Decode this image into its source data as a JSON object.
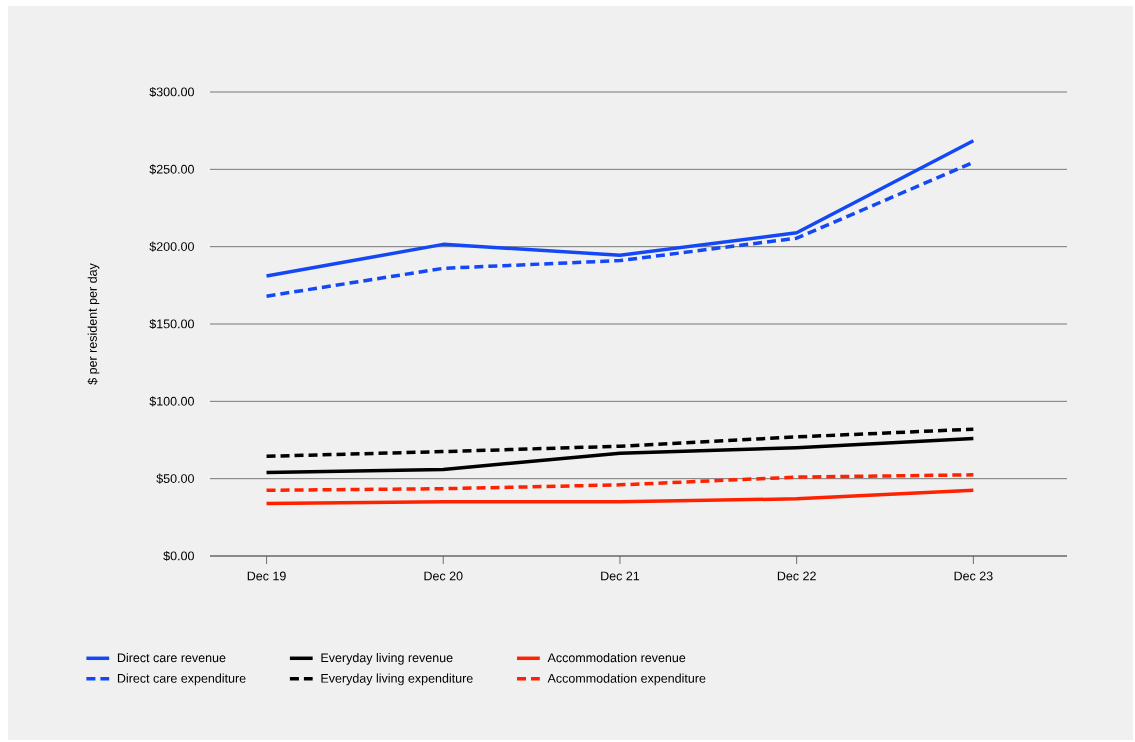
{
  "chart_data": {
    "type": "line",
    "ylabel": "$ per resident per day",
    "categories": [
      "Dec 19",
      "Dec 20",
      "Dec 21",
      "Dec 22",
      "Dec 23"
    ],
    "series": [
      {
        "name": "Direct care revenue",
        "color": "#1448f5",
        "line_style": "solid",
        "values": [
          181,
          201.5,
          194.5,
          209,
          268.5
        ]
      },
      {
        "name": "Direct care expenditure",
        "color": "#1448f5",
        "line_style": "dashed",
        "values": [
          168,
          186,
          191,
          205.5,
          254.5
        ]
      },
      {
        "name": "Everyday living revenue",
        "color": "#000000",
        "line_style": "solid",
        "values": [
          54,
          56,
          66.5,
          70,
          76
        ]
      },
      {
        "name": "Everyday living expenditure",
        "color": "#000000",
        "line_style": "dashed",
        "values": [
          64.5,
          67.5,
          71,
          77,
          82
        ]
      },
      {
        "name": "Accommodation revenue",
        "color": "#ff2200",
        "line_style": "solid",
        "values": [
          34,
          35,
          35,
          37,
          42.5
        ]
      },
      {
        "name": "Accommodation expenditure",
        "color": "#ff2200",
        "line_style": "dashed",
        "values": [
          42.5,
          43.5,
          46,
          51,
          52.5
        ]
      }
    ],
    "ylim": [
      0,
      300
    ],
    "yticks": [
      {
        "value": 0,
        "label": "$0.00"
      },
      {
        "value": 50,
        "label": "$50.00"
      },
      {
        "value": 100,
        "label": "$100.00"
      },
      {
        "value": 150,
        "label": "$150.00"
      },
      {
        "value": 200,
        "label": "$200.00"
      },
      {
        "value": 250,
        "label": "$250.00"
      },
      {
        "value": 300,
        "label": "$300.00"
      }
    ],
    "grid": "y",
    "legend": "bottom",
    "marker": "none"
  }
}
